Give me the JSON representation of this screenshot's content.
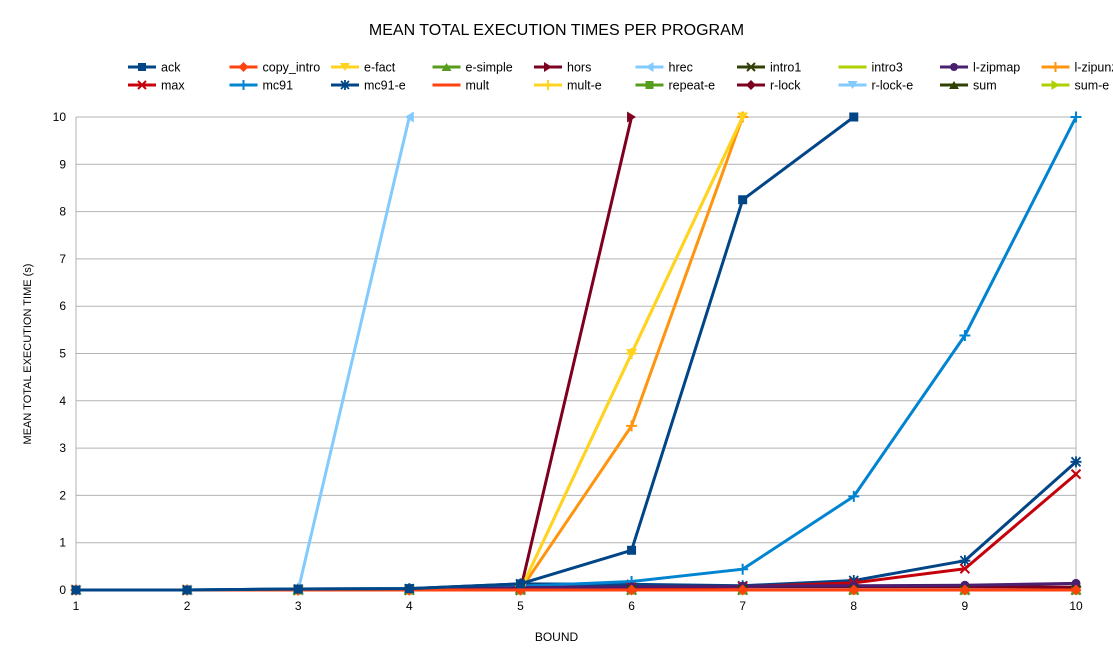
{
  "chart_data": {
    "type": "line",
    "title": "MEAN TOTAL EXECUTION TIMES PER PROGRAM",
    "xlabel": "BOUND",
    "ylabel": "MEAN TOTAL EXECUTION TIME (s)",
    "x": [
      1,
      2,
      3,
      4,
      5,
      6,
      7,
      8,
      9,
      10
    ],
    "xlim": [
      1,
      10
    ],
    "ylim": [
      0,
      10
    ],
    "yticks": [
      0,
      1,
      2,
      3,
      4,
      5,
      6,
      7,
      8,
      9,
      10
    ],
    "grid": "horizontal",
    "legend_position": "top",
    "series": [
      {
        "name": "ack",
        "color": "#004586",
        "marker": "square",
        "values": [
          0,
          0,
          0.02,
          0.03,
          0.13,
          0.84,
          8.25,
          10,
          null,
          null
        ]
      },
      {
        "name": "copy_intro",
        "color": "#ff420e",
        "marker": "diamond",
        "values": [
          0,
          0,
          0,
          0,
          0,
          0,
          0,
          0,
          0,
          0
        ]
      },
      {
        "name": "e-fact",
        "color": "#ffd320",
        "marker": "triangle-down",
        "values": [
          0,
          0,
          0,
          0,
          0,
          5.0,
          10,
          null,
          null,
          null
        ]
      },
      {
        "name": "e-simple",
        "color": "#579d1c",
        "marker": "triangle-up",
        "values": [
          0,
          0,
          0,
          0,
          0,
          0,
          0,
          0,
          0,
          0
        ]
      },
      {
        "name": "hors",
        "color": "#7e0021",
        "marker": "triangle-right",
        "values": [
          0,
          0,
          0,
          0,
          0,
          10,
          null,
          null,
          null,
          null
        ]
      },
      {
        "name": "hrec",
        "color": "#83caff",
        "marker": "triangle-left",
        "values": [
          0,
          0,
          0,
          10,
          null,
          null,
          null,
          null,
          null,
          null
        ]
      },
      {
        "name": "intro1",
        "color": "#314004",
        "marker": "x-cross",
        "values": [
          0,
          0,
          0,
          0,
          0,
          0,
          0,
          0,
          0,
          0
        ]
      },
      {
        "name": "intro3",
        "color": "#aecf00",
        "marker": "dash",
        "values": [
          0,
          0,
          0,
          0,
          0,
          0,
          0,
          0,
          0,
          0
        ]
      },
      {
        "name": "l-zipmap",
        "color": "#4b1f6f",
        "marker": "circle",
        "values": [
          0,
          0,
          0,
          0,
          0.05,
          0.07,
          0.08,
          0.09,
          0.1,
          0.14
        ]
      },
      {
        "name": "l-zipunzip",
        "color": "#ff950e",
        "marker": "plus",
        "values": [
          0,
          0,
          0,
          0,
          0,
          3.47,
          10,
          null,
          null,
          null
        ]
      },
      {
        "name": "max",
        "color": "#c5000b",
        "marker": "x",
        "values": [
          0,
          0,
          0,
          0,
          0.03,
          0.05,
          0.07,
          0.15,
          0.45,
          2.45
        ]
      },
      {
        "name": "mc91",
        "color": "#0084d1",
        "marker": "plus",
        "values": [
          0,
          0,
          0.02,
          0.03,
          0.08,
          0.18,
          0.44,
          1.98,
          5.38,
          10
        ]
      },
      {
        "name": "mc91-e",
        "color": "#004586",
        "marker": "star",
        "values": [
          0,
          0,
          0.02,
          0.03,
          0.13,
          0.12,
          0.09,
          0.2,
          0.62,
          2.71
        ]
      },
      {
        "name": "mult",
        "color": "#ff420e",
        "marker": "dash",
        "values": [
          0,
          0,
          0,
          0,
          0,
          0,
          0,
          0,
          0,
          0
        ]
      },
      {
        "name": "mult-e",
        "color": "#ffd320",
        "marker": "plus",
        "values": [
          0,
          0,
          0,
          0,
          0,
          5.0,
          10,
          null,
          null,
          null
        ]
      },
      {
        "name": "repeat-e",
        "color": "#579d1c",
        "marker": "square",
        "values": [
          0,
          0,
          0,
          0,
          0,
          0,
          0,
          0,
          0,
          0
        ]
      },
      {
        "name": "r-lock",
        "color": "#7e0021",
        "marker": "diamond",
        "values": [
          0,
          0,
          0,
          0,
          0.05,
          0.08,
          0.07,
          0.07,
          0.07,
          0.06
        ]
      },
      {
        "name": "r-lock-e",
        "color": "#83caff",
        "marker": "triangle-down",
        "values": [
          0,
          0,
          0,
          0,
          0,
          0,
          0,
          0,
          0,
          0
        ]
      },
      {
        "name": "sum",
        "color": "#314004",
        "marker": "triangle-up",
        "values": [
          0,
          0,
          0,
          0,
          0,
          0,
          0,
          0,
          0,
          0
        ]
      },
      {
        "name": "sum-e",
        "color": "#aecf00",
        "marker": "triangle-right",
        "values": [
          0,
          0,
          0,
          0,
          0,
          0,
          0,
          0,
          0,
          0
        ]
      }
    ]
  }
}
